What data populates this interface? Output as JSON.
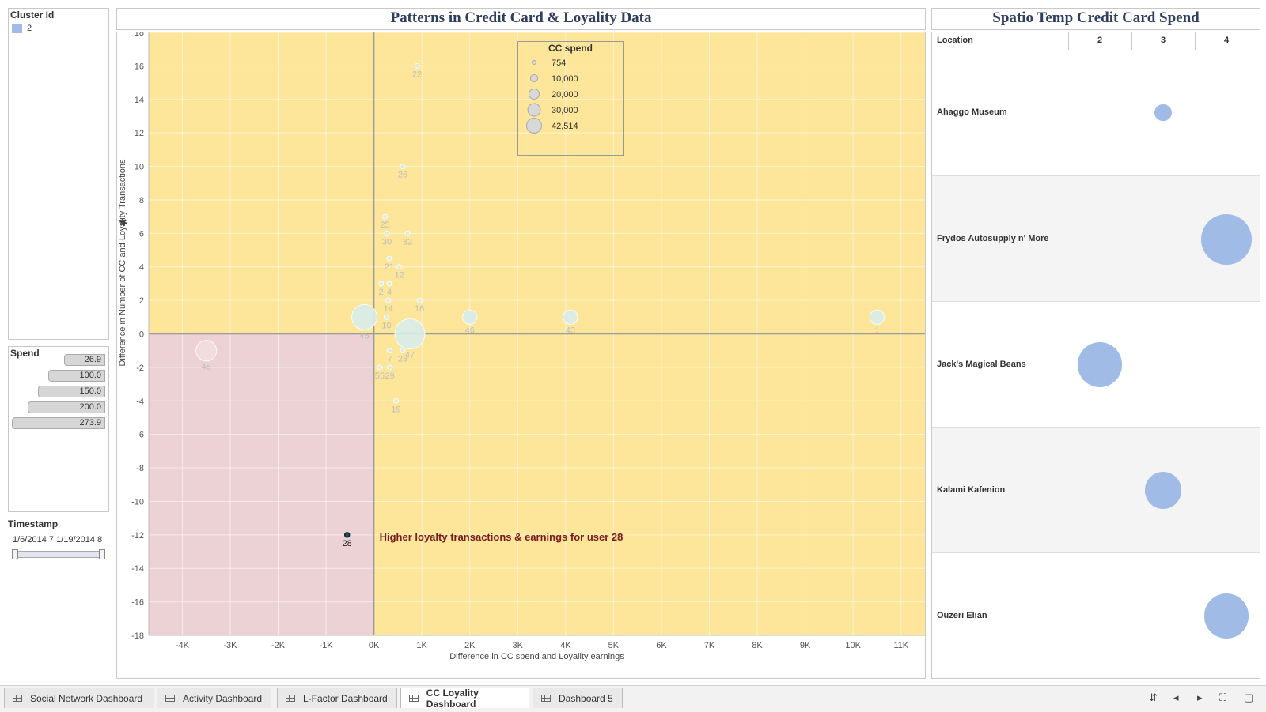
{
  "filters": {
    "cluster": {
      "title": "Cluster Id",
      "items": [
        {
          "label": "2",
          "color": "#9fbbe6"
        }
      ]
    },
    "spend": {
      "title": "Spend",
      "items": [
        {
          "label": "26.9",
          "value": 26.9
        },
        {
          "label": "100.0",
          "value": 100.0
        },
        {
          "label": "150.0",
          "value": 150.0
        },
        {
          "label": "200.0",
          "value": 200.0
        },
        {
          "label": "273.9",
          "value": 273.9
        }
      ]
    },
    "timestamp": {
      "title": "Timestamp",
      "start": "1/6/2014 7:",
      "end": "1/19/2014 8"
    }
  },
  "scatter": {
    "title": "Patterns in Credit Card & Loyality Data",
    "annotation": "Higher loyalty transactions & earnings for user 28",
    "legend": {
      "title": "CC spend",
      "items": [
        {
          "label": "754",
          "value": 754
        },
        {
          "label": "10,000",
          "value": 10000
        },
        {
          "label": "20,000",
          "value": 20000
        },
        {
          "label": "30,000",
          "value": 30000
        },
        {
          "label": "42,514",
          "value": 42514
        }
      ]
    },
    "pin_icon": "pin-icon"
  },
  "bubble_table": {
    "title": "Spatio Temp Credit Card Spend",
    "header_location": "Location",
    "columns": [
      "2",
      "3",
      "4"
    ],
    "rows": [
      {
        "location": "Ahaggo Museum",
        "col": "3",
        "spend": 5000
      },
      {
        "location": "Frydos Autosupply n' More",
        "col": "4",
        "spend": 42514
      },
      {
        "location": "Jack's Magical Beans",
        "col": "2",
        "spend": 33000
      },
      {
        "location": "Kalami Kafenion",
        "col": "3",
        "spend": 22000
      },
      {
        "location": "Ouzeri Elian",
        "col": "4",
        "spend": 33000
      }
    ],
    "bubble_color": "#9fbbe6"
  },
  "chart_data": {
    "type": "scatter",
    "title": "Patterns in Credit Card & Loyality Data",
    "xlabel": "Difference in CC spend and Loyality earnings",
    "ylabel": "Difference in Number of CC and Loyality Transactions",
    "xlim": [
      -4700,
      11500
    ],
    "ylim": [
      -18,
      18
    ],
    "xticks": [
      {
        "v": -4000,
        "label": "-4K"
      },
      {
        "v": -3000,
        "label": "-3K"
      },
      {
        "v": -2000,
        "label": "-2K"
      },
      {
        "v": -1000,
        "label": "-1K"
      },
      {
        "v": 0,
        "label": "0K"
      },
      {
        "v": 1000,
        "label": "1K"
      },
      {
        "v": 2000,
        "label": "2K"
      },
      {
        "v": 3000,
        "label": "3K"
      },
      {
        "v": 4000,
        "label": "4K"
      },
      {
        "v": 5000,
        "label": "5K"
      },
      {
        "v": 6000,
        "label": "6K"
      },
      {
        "v": 7000,
        "label": "7K"
      },
      {
        "v": 8000,
        "label": "8K"
      },
      {
        "v": 9000,
        "label": "9K"
      },
      {
        "v": 10000,
        "label": "10K"
      },
      {
        "v": 11000,
        "label": "11K"
      }
    ],
    "yticks": [
      18,
      16,
      14,
      12,
      10,
      8,
      6,
      4,
      2,
      0,
      -2,
      -4,
      -6,
      -8,
      -10,
      -12,
      -14,
      -16,
      -18
    ],
    "quadrant_colors": {
      "yellow": "#fde69a",
      "pink": "#ecd2d5"
    },
    "points": [
      {
        "id": "22",
        "x": 900,
        "y": 16,
        "spend": 754
      },
      {
        "id": "26",
        "x": 600,
        "y": 10,
        "spend": 754
      },
      {
        "id": "25",
        "x": 230,
        "y": 7,
        "spend": 754
      },
      {
        "id": "30",
        "x": 270,
        "y": 6,
        "spend": 754
      },
      {
        "id": "32",
        "x": 700,
        "y": 6,
        "spend": 754
      },
      {
        "id": "21",
        "x": 320,
        "y": 4.5,
        "spend": 754
      },
      {
        "id": "12",
        "x": 530,
        "y": 4,
        "spend": 754
      },
      {
        "id": "2",
        "x": 150,
        "y": 3,
        "spend": 754
      },
      {
        "id": "4",
        "x": 320,
        "y": 3,
        "spend": 754
      },
      {
        "id": "14",
        "x": 300,
        "y": 2,
        "spend": 754
      },
      {
        "id": "16",
        "x": 950,
        "y": 2,
        "spend": 754
      },
      {
        "id": "45",
        "x": -200,
        "y": 1,
        "spend": 30000
      },
      {
        "id": "10",
        "x": 260,
        "y": 1,
        "spend": 754
      },
      {
        "id": "46",
        "x": 2000,
        "y": 1,
        "spend": 10000
      },
      {
        "id": "43",
        "x": 4100,
        "y": 1,
        "spend": 10000
      },
      {
        "id": "1",
        "x": 10500,
        "y": 1,
        "spend": 10000
      },
      {
        "id": "47",
        "x": 750,
        "y": 0,
        "spend": 42514
      },
      {
        "id": "48",
        "x": -3500,
        "y": -1,
        "spend": 20000
      },
      {
        "id": "7",
        "x": 330,
        "y": -1,
        "spend": 754
      },
      {
        "id": "23",
        "x": 600,
        "y": -1,
        "spend": 754
      },
      {
        "id": "55",
        "x": 120,
        "y": -2,
        "spend": 754
      },
      {
        "id": "29",
        "x": 330,
        "y": -2,
        "spend": 754
      },
      {
        "id": "19",
        "x": 460,
        "y": -4,
        "spend": 754
      },
      {
        "id": "28",
        "x": -560,
        "y": -12,
        "spend": 754
      }
    ]
  }
}
